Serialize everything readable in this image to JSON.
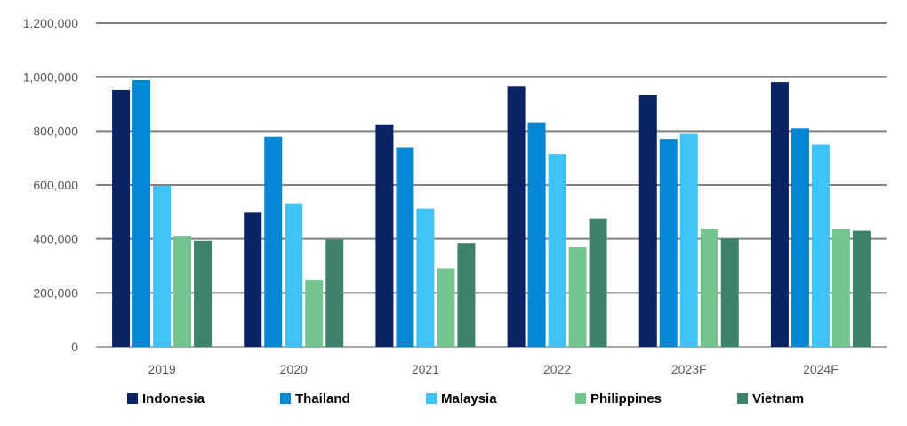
{
  "chart_data": {
    "type": "bar",
    "title": "",
    "xlabel": "",
    "ylabel": "",
    "categories": [
      "2019",
      "2020",
      "2021",
      "2022",
      "2023F",
      "2024F"
    ],
    "ylim": [
      0,
      1200000
    ],
    "yticks": [
      "0",
      "200,000",
      "400,000",
      "600,000",
      "800,000",
      "1,000,000",
      "1,200,000"
    ],
    "grid": true,
    "legend_position": "bottom",
    "series": [
      {
        "name": "Indonesia",
        "color": "#0b2265",
        "values": [
          953000,
          500000,
          825000,
          965000,
          933000,
          982000
        ]
      },
      {
        "name": "Thailand",
        "color": "#0387d3",
        "values": [
          989000,
          779000,
          740000,
          832000,
          771000,
          810000
        ]
      },
      {
        "name": "Malaysia",
        "color": "#3fc3f7",
        "values": [
          597000,
          532000,
          512000,
          715000,
          789000,
          750000
        ]
      },
      {
        "name": "Philippines",
        "color": "#73c48f",
        "values": [
          412000,
          247000,
          292000,
          369000,
          438000,
          438000
        ]
      },
      {
        "name": "Vietnam",
        "color": "#3e826c",
        "values": [
          393000,
          397000,
          385000,
          476000,
          401000,
          430000
        ]
      }
    ]
  }
}
